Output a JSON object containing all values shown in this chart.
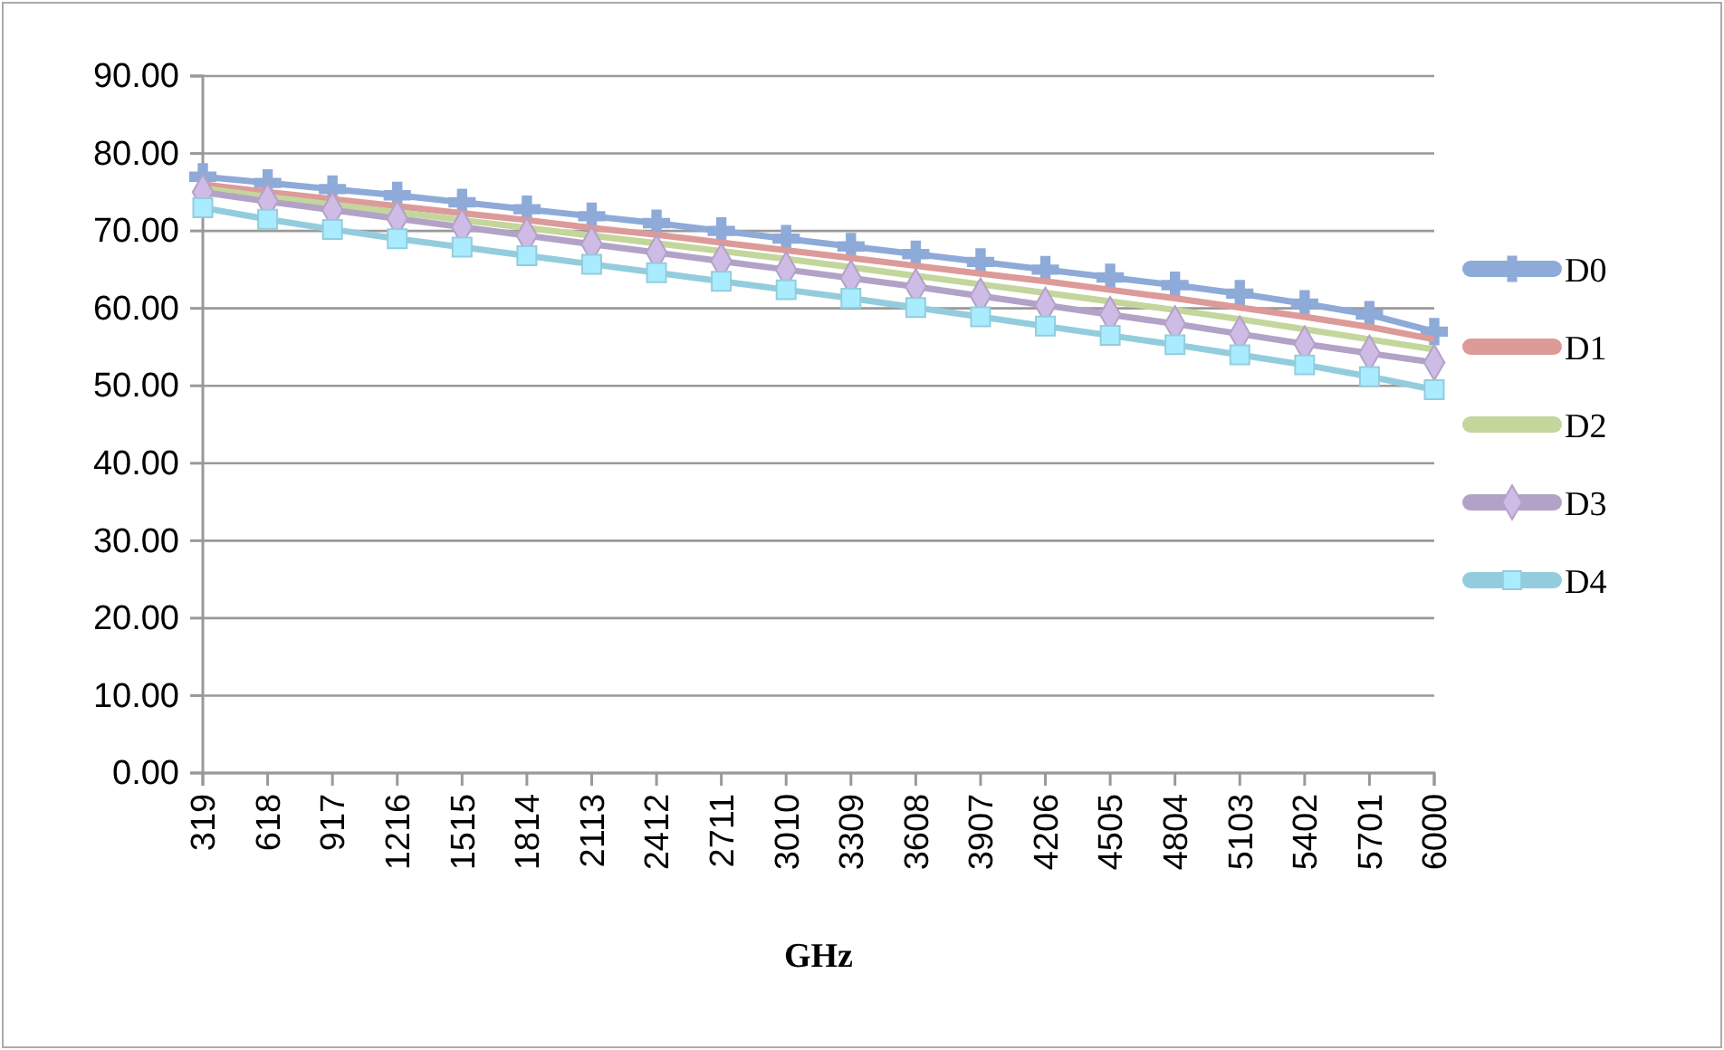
{
  "chart_data": {
    "type": "line",
    "xlabel": "GHz",
    "x": [
      319,
      618,
      917,
      1216,
      1515,
      1814,
      2113,
      2412,
      2711,
      3010,
      3309,
      3608,
      3907,
      4206,
      4505,
      4804,
      5103,
      5402,
      5701,
      6000
    ],
    "xlim": [
      319,
      6000
    ],
    "xticks": [
      319,
      618,
      917,
      1216,
      1515,
      1814,
      2113,
      2412,
      2711,
      3010,
      3309,
      3608,
      3907,
      4206,
      4505,
      4804,
      5103,
      5402,
      5701,
      6000
    ],
    "ylim": [
      0,
      90
    ],
    "yticks": [
      {
        "value": 0,
        "label": "0.00"
      },
      {
        "value": 10,
        "label": "10.00"
      },
      {
        "value": 20,
        "label": "20.00"
      },
      {
        "value": 30,
        "label": "30.00"
      },
      {
        "value": 40,
        "label": "40.00"
      },
      {
        "value": 50,
        "label": "50.00"
      },
      {
        "value": 60,
        "label": "60.00"
      },
      {
        "value": 70,
        "label": "70.00"
      },
      {
        "value": 80,
        "label": "80.00"
      },
      {
        "value": 90,
        "label": "90.00"
      }
    ],
    "grid": "y",
    "legend": "right",
    "line_style": "solid",
    "series": [
      {
        "name": "D0",
        "color": "#8eaad8",
        "marker": "cross",
        "values": [
          77.0,
          76.2,
          75.4,
          74.6,
          73.7,
          72.8,
          71.9,
          71.0,
          70.0,
          69.0,
          68.0,
          67.0,
          66.0,
          65.0,
          64.0,
          63.0,
          61.9,
          60.6,
          59.2,
          57.0
        ]
      },
      {
        "name": "D1",
        "color": "#dc9a98",
        "marker": "none",
        "values": [
          76.0,
          75.0,
          74.1,
          73.2,
          72.3,
          71.4,
          70.4,
          69.5,
          68.5,
          67.5,
          66.5,
          65.5,
          64.5,
          63.5,
          62.4,
          61.3,
          60.1,
          58.9,
          57.6,
          56.0
        ]
      },
      {
        "name": "D2",
        "color": "#c3d69b",
        "marker": "none",
        "values": [
          75.5,
          74.4,
          73.4,
          72.4,
          71.4,
          70.4,
          69.4,
          68.4,
          67.4,
          66.4,
          65.3,
          64.2,
          63.1,
          62.0,
          60.9,
          59.8,
          58.6,
          57.3,
          56.0,
          54.7
        ]
      },
      {
        "name": "D3",
        "color": "#b3a2c7",
        "marker": "diamond",
        "values": [
          75.0,
          73.8,
          72.7,
          71.6,
          70.5,
          69.4,
          68.3,
          67.2,
          66.1,
          65.0,
          63.9,
          62.8,
          61.6,
          60.4,
          59.2,
          58.0,
          56.7,
          55.4,
          54.2,
          53.0
        ]
      },
      {
        "name": "D4",
        "color": "#93cddd",
        "marker": "square",
        "values": [
          73.0,
          71.5,
          70.2,
          69.0,
          67.9,
          66.8,
          65.7,
          64.6,
          63.5,
          62.4,
          61.3,
          60.1,
          58.9,
          57.7,
          56.5,
          55.3,
          54.0,
          52.7,
          51.2,
          49.5
        ]
      }
    ]
  }
}
